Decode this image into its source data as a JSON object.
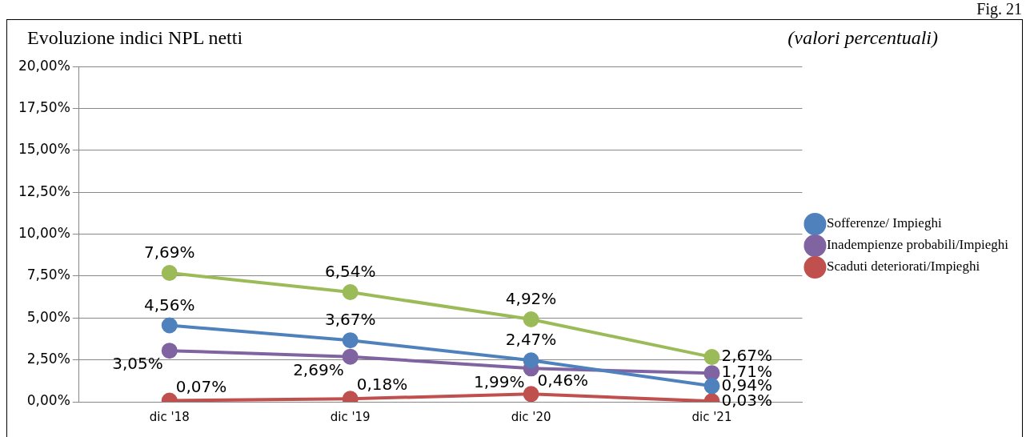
{
  "chart_data": {
    "type": "line",
    "title": "Evoluzione indici NPL netti",
    "subtitle": "(valori percentuali)",
    "annotations": [
      "Fig. 21"
    ],
    "categories": [
      "dic '18",
      "dic '19",
      "dic '20",
      "dic '21"
    ],
    "series": [
      {
        "name": "Sofferenze/ Impieghi",
        "color": "#4f81bd",
        "values": [
          4.56,
          3.67,
          2.47,
          0.94
        ],
        "value_labels": [
          "4,56%",
          "3,67%",
          "2,47%",
          "0,94%"
        ]
      },
      {
        "name": "Inadempienze probabili/Impieghi",
        "color": "#8064a2",
        "values": [
          3.05,
          2.69,
          1.99,
          1.71
        ],
        "value_labels": [
          "3,05%",
          "2,69%",
          "1,99%",
          "1,71%"
        ]
      },
      {
        "name": "Scaduti deteriorati/Impieghi",
        "color": "#c0504d",
        "values": [
          0.07,
          0.18,
          0.46,
          0.03
        ],
        "value_labels": [
          "0,07%",
          "0,18%",
          "0,46%",
          "0,03%"
        ]
      },
      {
        "color": "#9bbb59",
        "values": [
          7.69,
          6.54,
          4.92,
          2.67
        ],
        "value_labels": [
          "7,69%",
          "6,54%",
          "4,92%",
          "2,67%"
        ]
      }
    ],
    "ylim": [
      0,
      20
    ],
    "yticks": [
      {
        "value": 0,
        "label": "0,00%"
      },
      {
        "value": 2.5,
        "label": "2,50%"
      },
      {
        "value": 5,
        "label": "5,00%"
      },
      {
        "value": 7.5,
        "label": "7,50%"
      },
      {
        "value": 10,
        "label": "10,00%"
      },
      {
        "value": 12.5,
        "label": "12,50%"
      },
      {
        "value": 15,
        "label": "15,00%"
      },
      {
        "value": 17.5,
        "label": "17,50%"
      },
      {
        "value": 20,
        "label": "20,00%"
      }
    ],
    "grid": "y",
    "legend": "right",
    "marker": "circle",
    "line_style": "solid"
  }
}
